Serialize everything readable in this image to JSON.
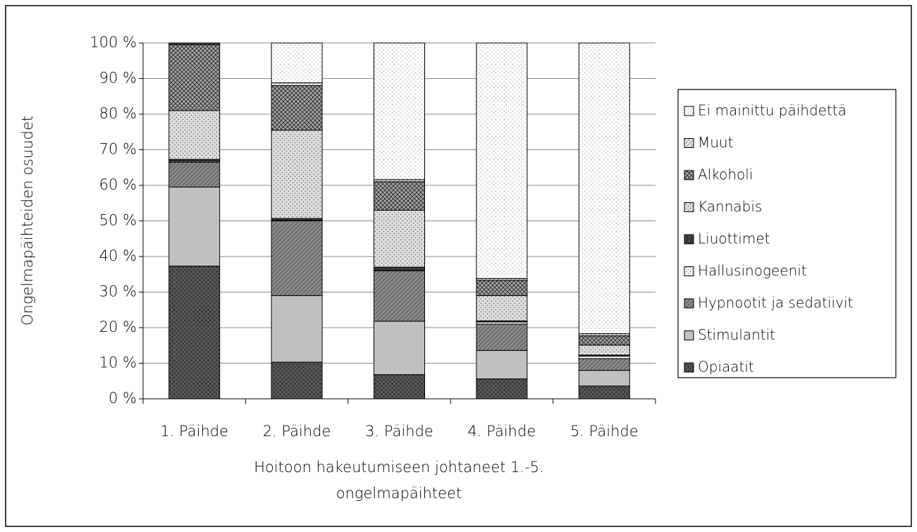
{
  "chart_data": {
    "type": "stacked_bar_100",
    "ylabel": "Ongelmapäihteiden osuudet",
    "xlabel": [
      "Hoitoon hakeutumiseen johtaneet 1.-5.",
      "ongelmapäihteet"
    ],
    "categories": [
      "1. Päihde",
      "2. Päihde",
      "3. Päihde",
      "4. Päihde",
      "5. Päihde"
    ],
    "ylim": [
      0,
      100
    ],
    "yticks": [
      {
        "value": 0,
        "label": "0 %"
      },
      {
        "value": 10,
        "label": "10 %"
      },
      {
        "value": 20,
        "label": "20 %"
      },
      {
        "value": 30,
        "label": "30 %"
      },
      {
        "value": 40,
        "label": "40 %"
      },
      {
        "value": 50,
        "label": "50 %"
      },
      {
        "value": 60,
        "label": "60 %"
      },
      {
        "value": 70,
        "label": "70 %"
      },
      {
        "value": 80,
        "label": "80 %"
      },
      {
        "value": 90,
        "label": "90 %"
      },
      {
        "value": 100,
        "label": "100 %"
      }
    ],
    "grid": true,
    "legend": "right",
    "series": [
      {
        "name": "Opiaatit",
        "color": "#555555",
        "values": [
          37.3,
          10.3,
          6.8,
          5.6,
          3.6
        ]
      },
      {
        "name": "Stimulantit",
        "color": "#c0c0c0",
        "values": [
          22.2,
          18.7,
          15.0,
          8.0,
          4.4
        ]
      },
      {
        "name": "Hypnootit ja sedatiivit",
        "color": "#8a8a8a",
        "values": [
          7.0,
          21.0,
          14.2,
          7.4,
          3.3
        ]
      },
      {
        "name": "Hallusinogeenit",
        "color": "#f4f4f4",
        "values": [
          0.3,
          0.2,
          0.1,
          0.6,
          0.7
        ]
      },
      {
        "name": "Liuottimet",
        "color": "#444444",
        "values": [
          0.5,
          0.5,
          0.9,
          0.3,
          0.3
        ]
      },
      {
        "name": "Kannabis",
        "color": "#dddddd",
        "values": [
          13.7,
          24.8,
          16.0,
          7.1,
          2.8
        ]
      },
      {
        "name": "Alkoholi",
        "color": "#a8a8a8",
        "values": [
          18.5,
          12.5,
          8.0,
          4.3,
          2.6
        ]
      },
      {
        "name": "Muut",
        "color": "#e4e4e4",
        "values": [
          0.3,
          0.8,
          0.6,
          0.5,
          0.6
        ]
      },
      {
        "name": "Ei mainittu päihdettä",
        "color": "#fafafa",
        "values": [
          0.2,
          11.2,
          38.4,
          66.2,
          81.7
        ]
      }
    ]
  }
}
